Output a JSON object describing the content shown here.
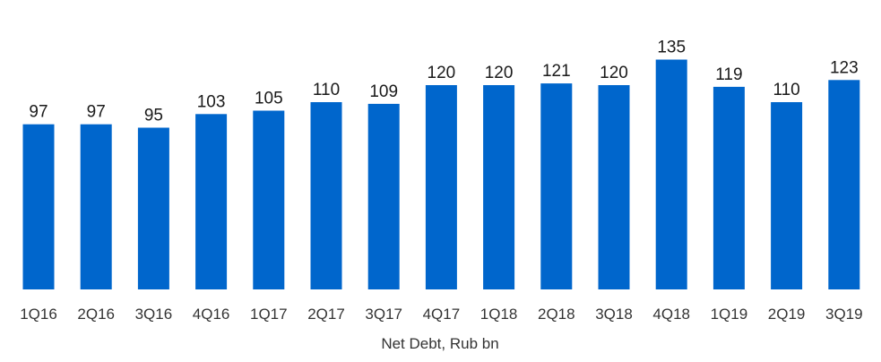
{
  "chart_data": {
    "type": "bar",
    "categories": [
      "1Q16",
      "2Q16",
      "3Q16",
      "4Q16",
      "1Q17",
      "2Q17",
      "3Q17",
      "4Q17",
      "1Q18",
      "2Q18",
      "3Q18",
      "4Q18",
      "1Q19",
      "2Q19",
      "3Q19"
    ],
    "values": [
      97,
      97,
      95,
      103,
      105,
      110,
      109,
      120,
      120,
      121,
      120,
      135,
      119,
      110,
      123
    ],
    "title": "",
    "xlabel": "Net Debt, Rub bn",
    "ylabel": "",
    "ylim": [
      0,
      135
    ],
    "data_labels": true,
    "grid": false,
    "bar_color": "#0066CC"
  }
}
